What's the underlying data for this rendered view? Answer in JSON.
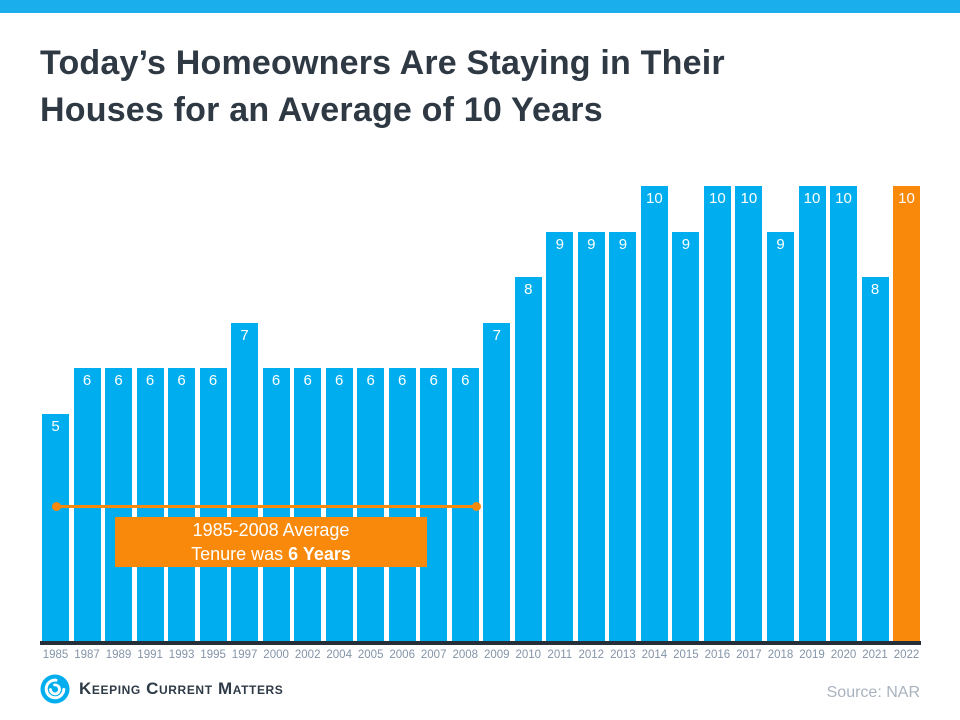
{
  "title_full": "Today’s Homeowners Are Staying in Their Houses for an Average of 10 Years",
  "title_lines": [
    "Today’s Homeowners Are Staying in Their",
    "Houses for an Average of 10 Years"
  ],
  "chart_data": {
    "type": "bar",
    "title": "Today’s Homeowners Are Staying in Their Houses for an Average of 10 Years",
    "categories": [
      "1985",
      "1987",
      "1989",
      "1991",
      "1993",
      "1995",
      "1997",
      "2000",
      "2002",
      "2004",
      "2005",
      "2006",
      "2007",
      "2008",
      "2009",
      "2010",
      "2011",
      "2012",
      "2013",
      "2014",
      "2015",
      "2016",
      "2017",
      "2018",
      "2019",
      "2020",
      "2021",
      "2022"
    ],
    "values": [
      5,
      6,
      6,
      6,
      6,
      6,
      7,
      6,
      6,
      6,
      6,
      6,
      6,
      6,
      7,
      8,
      9,
      9,
      9,
      10,
      9,
      10,
      10,
      9,
      10,
      10,
      8,
      10
    ],
    "xlabel": "",
    "ylabel": "",
    "ylim": [
      0,
      10
    ],
    "grid": false,
    "legend": "none",
    "bar_color": "#00AEEF",
    "highlight_color": "#F8890B",
    "highlight_category": "2022",
    "value_labels": "inside-top, white",
    "annotation": {
      "line1": "1985-2008 Average",
      "line2_prefix": "Tenure was ",
      "line2_bold": "6 Years",
      "span_categories": [
        "1985",
        "2008"
      ]
    }
  },
  "footer": {
    "logo_text": "Keeping Current Matters",
    "source": "Source: NAR"
  },
  "colors": {
    "top_bar": "#1BAEEC",
    "bar_blue": "#00AEEF",
    "accent_orange": "#F8890B",
    "title_text": "#2E3944",
    "axis_line": "#242F3A",
    "tick_text": "#8494A8",
    "source_text": "#A9B3BF",
    "logo_text": "#2E3B47",
    "background": "#FFFFFF"
  }
}
